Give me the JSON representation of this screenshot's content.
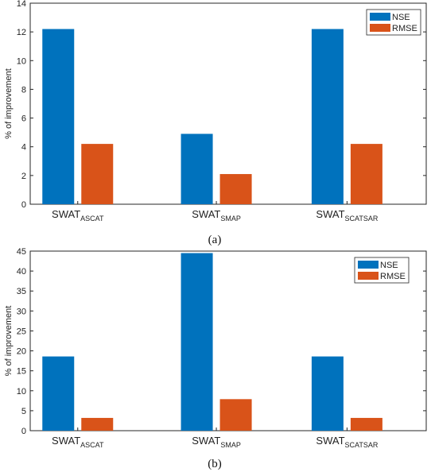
{
  "chart_data": [
    {
      "type": "bar",
      "caption": "(a)",
      "categories": [
        {
          "base": "SWAT",
          "sub": "ASCAT"
        },
        {
          "base": "SWAT",
          "sub": "SMAP"
        },
        {
          "base": "SWAT",
          "sub": "SCATSAR"
        }
      ],
      "series": [
        {
          "name": "NSE",
          "color": "#0072BD",
          "values": [
            12.2,
            4.9,
            12.2
          ]
        },
        {
          "name": "RMSE",
          "color": "#D95319",
          "values": [
            4.2,
            2.1,
            4.2
          ]
        }
      ],
      "ylabel": "% of improvement",
      "ylim": [
        0,
        14
      ],
      "yticks": [
        0,
        2,
        4,
        6,
        8,
        10,
        12,
        14
      ],
      "legend": "top-right",
      "grid": false
    },
    {
      "type": "bar",
      "caption": "(b)",
      "categories": [
        {
          "base": "SWAT",
          "sub": "ASCAT"
        },
        {
          "base": "SWAT",
          "sub": "SMAP"
        },
        {
          "base": "SWAT",
          "sub": "SCATSAR"
        }
      ],
      "series": [
        {
          "name": "NSE",
          "color": "#0072BD",
          "values": [
            18.6,
            44.5,
            18.6
          ]
        },
        {
          "name": "RMSE",
          "color": "#D95319",
          "values": [
            3.2,
            7.9,
            3.2
          ]
        }
      ],
      "ylabel": "% of improvement",
      "ylim": [
        0,
        45
      ],
      "yticks": [
        0,
        5,
        10,
        15,
        20,
        25,
        30,
        35,
        40,
        45
      ],
      "legend": "top-right",
      "grid": false
    }
  ]
}
